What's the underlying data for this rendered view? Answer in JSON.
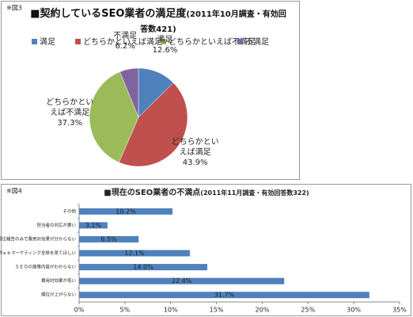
{
  "chart_data": [
    {
      "type": "pie",
      "note": "※図3",
      "title": "■契約しているSEO業者の満足度",
      "subtitle": "(2011年10月調査・有効回答数421)",
      "categories": [
        "満足",
        "どちらかといえば満足",
        "どちらかといえば不満足",
        "不満足"
      ],
      "values": [
        12.6,
        43.9,
        37.3,
        6.2
      ],
      "value_labels": [
        "12.6%",
        "43.9%",
        "37.3%",
        "6.2%"
      ],
      "colors": [
        "#4f81bd",
        "#c0504d",
        "#9bbb59",
        "#8064a2"
      ],
      "legend": "top"
    },
    {
      "type": "bar",
      "orientation": "horizontal",
      "note": "※図4",
      "title": "■現在のSEO業者の不満点",
      "subtitle": "(2011年11月調査・有効回答数322)",
      "categories": [
        "その他",
        "担当者の対応が悪い",
        "順位報告のみで費用対効果が分からない",
        "Ｗｅｂマーケティング全体を見てほしい",
        "ＳＥＯの施策内容がわからない",
        "費用対効果が低い",
        "順位が上がらない"
      ],
      "values": [
        10.2,
        3.1,
        6.5,
        12.1,
        14.0,
        22.4,
        31.7
      ],
      "value_labels": [
        "10.2%",
        "3.1%",
        "6.5%",
        "12.1%",
        "14.0%",
        "22.4%",
        "31.7%"
      ],
      "color": "#4f81bd",
      "xlim": [
        0,
        35
      ],
      "xticks": [
        {
          "value": 0,
          "label": "0%"
        },
        {
          "value": 5,
          "label": "5%"
        },
        {
          "value": 10,
          "label": "10%"
        },
        {
          "value": 15,
          "label": "15%"
        },
        {
          "value": 20,
          "label": "20%"
        },
        {
          "value": 25,
          "label": "25%"
        },
        {
          "value": 30,
          "label": "30%"
        },
        {
          "value": 35,
          "label": "35%"
        }
      ]
    }
  ]
}
